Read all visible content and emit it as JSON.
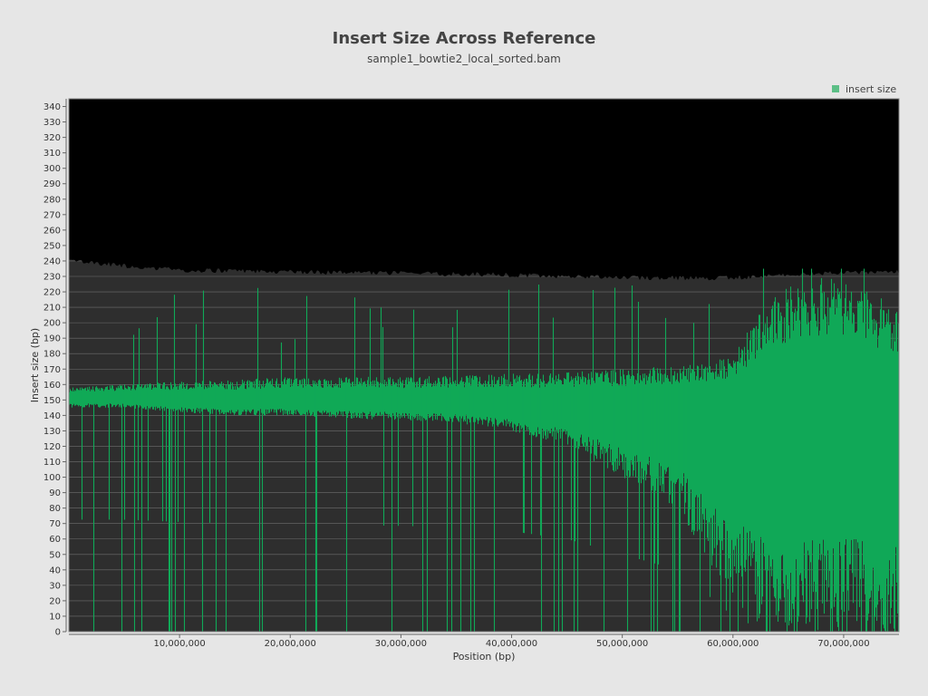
{
  "chart_data": {
    "type": "bar",
    "title": "Insert Size Across Reference",
    "subtitle": "sample1_bowtie2_local_sorted.bam",
    "xlabel": "Position (bp)",
    "ylabel": "Insert size (bp)",
    "xlim": [
      0,
      75000000
    ],
    "ylim": [
      0,
      345
    ],
    "xticks": [
      10000000,
      20000000,
      30000000,
      40000000,
      50000000,
      60000000,
      70000000
    ],
    "xtick_labels": [
      "10,000,000",
      "20,000,000",
      "30,000,000",
      "40,000,000",
      "50,000,000",
      "60,000,000",
      "70,000,000"
    ],
    "yticks": [
      0,
      10,
      20,
      30,
      40,
      50,
      60,
      70,
      80,
      90,
      100,
      110,
      120,
      130,
      140,
      150,
      160,
      170,
      180,
      190,
      200,
      210,
      220,
      230,
      240,
      250,
      260,
      270,
      280,
      290,
      300,
      310,
      320,
      330,
      340
    ],
    "legend": {
      "position": "top-right",
      "entries": [
        "insert size"
      ]
    },
    "grid": true,
    "colors": {
      "series": "#10a957",
      "lower_band": "#2e2e2e",
      "upper_band": "#000000",
      "background": "#e6e6e6"
    },
    "series": [
      {
        "name": "insert size",
        "x": [
          0,
          5000000,
          10000000,
          15000000,
          20000000,
          25000000,
          30000000,
          35000000,
          40000000,
          45000000,
          50000000,
          55000000,
          60000000,
          63000000,
          66000000,
          70000000,
          75000000
        ],
        "upper": [
          158,
          160,
          162,
          163,
          165,
          165,
          165,
          166,
          167,
          168,
          170,
          172,
          178,
          215,
          228,
          230,
          210
        ],
        "lower": [
          145,
          145,
          142,
          140,
          140,
          138,
          137,
          135,
          130,
          120,
          100,
          80,
          20,
          0,
          0,
          0,
          0
        ],
        "center": [
          152,
          152,
          151,
          150,
          151,
          150,
          150,
          150,
          149,
          148,
          148,
          148,
          150,
          150,
          150,
          150,
          150
        ]
      }
    ],
    "band_boundary": [
      {
        "x": 0,
        "y": 240
      },
      {
        "x": 10000000,
        "y": 234
      },
      {
        "x": 20000000,
        "y": 233
      },
      {
        "x": 30000000,
        "y": 232
      },
      {
        "x": 40000000,
        "y": 231
      },
      {
        "x": 50000000,
        "y": 229
      },
      {
        "x": 60000000,
        "y": 229
      },
      {
        "x": 68000000,
        "y": 232
      },
      {
        "x": 75000000,
        "y": 233
      }
    ]
  }
}
